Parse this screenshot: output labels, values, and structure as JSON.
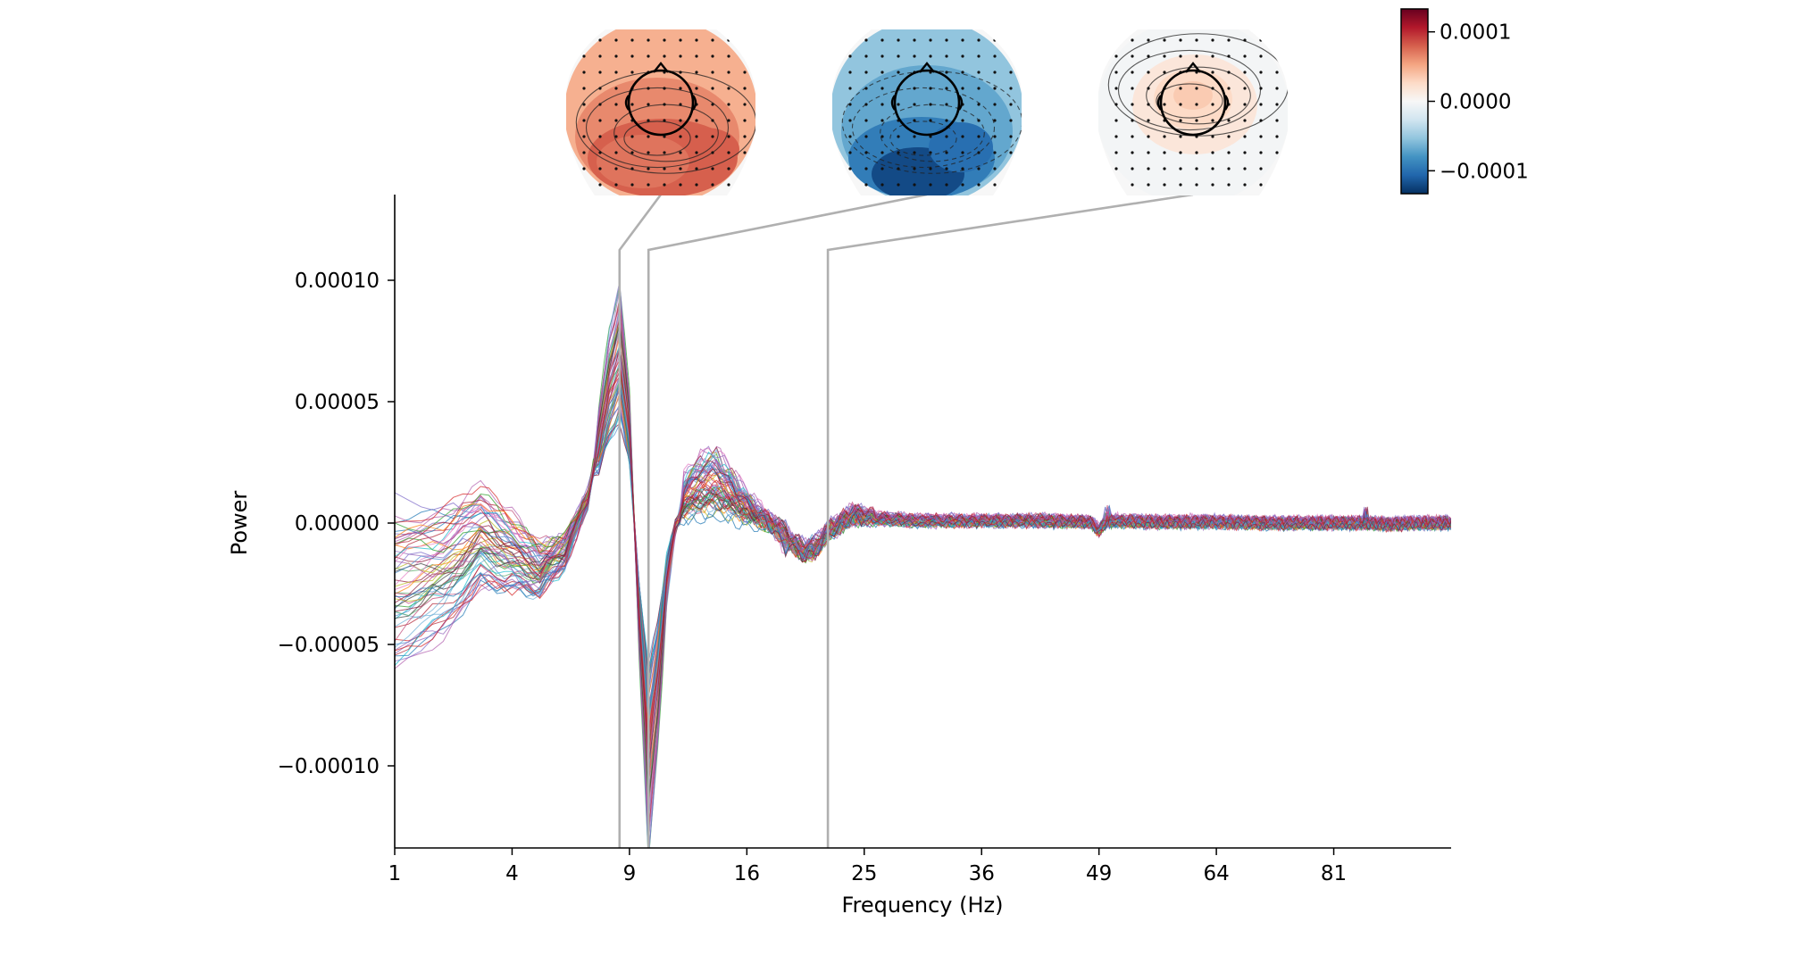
{
  "chart_data": {
    "type": "line",
    "title": "",
    "xlabel": "Frequency (Hz)",
    "ylabel": "Power",
    "x_scale": "sqrt",
    "xlim": [
      1,
      100
    ],
    "ylim": [
      -0.000132,
      0.000137
    ],
    "x_ticks": [
      1,
      4,
      9,
      16,
      25,
      36,
      49,
      64,
      81
    ],
    "x_tick_labels": [
      "1",
      "4",
      "9",
      "16",
      "25",
      "36",
      "49",
      "64",
      "81"
    ],
    "y_ticks": [
      -0.0001,
      -5e-05,
      0,
      5e-05,
      0.0001
    ],
    "y_tick_labels": [
      "−0.00010",
      "−0.00005",
      "0.00000",
      "0.00005",
      "0.00010"
    ],
    "n_channels": 60,
    "channel_colors": [
      "#1f77b4",
      "#4c8fd0",
      "#7b68c8",
      "#9467bd",
      "#b25fae",
      "#c04a78",
      "#d62728",
      "#b02030",
      "#8c1a3a",
      "#e377c2",
      "#ff7f0e",
      "#bcbd22",
      "#2ca02c",
      "#55a868",
      "#17becf",
      "#6baed6",
      "#3d3d3d"
    ],
    "mean_spectrum": {
      "x": [
        1,
        2,
        3,
        4,
        5,
        6,
        7,
        8,
        8.5,
        9,
        9.5,
        10,
        10.5,
        11,
        11.5,
        12,
        13,
        14,
        15,
        16,
        17,
        18,
        19,
        20,
        21,
        22,
        24,
        26,
        30,
        36,
        42,
        48,
        49,
        50,
        56,
        64,
        72,
        80,
        86,
        90,
        94,
        100
      ],
      "y": [
        -3e-05,
        -2.2e-05,
        -8e-06,
        -1.4e-05,
        -2e-05,
        -1.2e-05,
        1e-05,
        6e-05,
        7.5e-05,
        4e-05,
        -4e-05,
        -0.000105,
        -7e-05,
        -2.5e-05,
        -2e-06,
        8e-06,
        1.2e-05,
        1.3e-05,
        9e-06,
        5e-06,
        2e-06,
        -1e-06,
        -6e-06,
        -1e-05,
        -9e-06,
        -3e-06,
        3e-06,
        2e-06,
        1e-06,
        1e-06,
        1e-06,
        5e-07,
        -3e-06,
        1e-06,
        5e-07,
        5e-07,
        0,
        0,
        0,
        -5e-07,
        0,
        0
      ]
    },
    "topomaps": [
      {
        "freq_hz": 8.5,
        "peak_value": 8e-05,
        "pattern": "posterior-positive"
      },
      {
        "freq_hz": 10.0,
        "peak_value": -0.00012,
        "pattern": "posterior-negative"
      },
      {
        "freq_hz": 22.0,
        "peak_value": 3e-05,
        "pattern": "central-positive"
      }
    ],
    "colorbar": {
      "vmin": -0.000133,
      "vmax": 0.000133,
      "ticks": [
        0.0001,
        0,
        -0.0001
      ],
      "tick_labels": [
        "0.0001",
        "0.0000",
        "−0.0001"
      ],
      "colormap": [
        "#053061",
        "#2166ac",
        "#4393c3",
        "#92c5de",
        "#d1e5f0",
        "#f7f7f7",
        "#fddbc7",
        "#f4a582",
        "#d6604d",
        "#b2182b",
        "#67001f"
      ]
    }
  },
  "colors": {
    "axis": "#000000",
    "connector": "#b0b0b0",
    "background": "#ffffff"
  }
}
